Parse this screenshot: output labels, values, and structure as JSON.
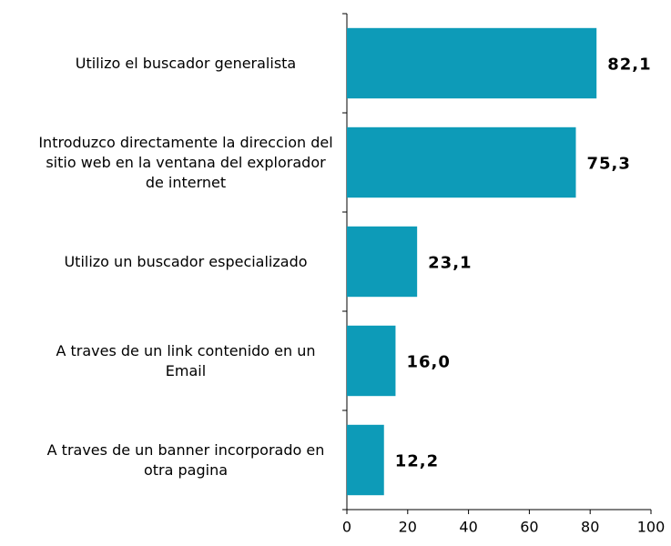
{
  "chart_data": {
    "type": "barh",
    "categories": [
      "Utilizo el buscador generalista",
      "Introduzco directamente la direccion del sitio web en la ventana del explorador de internet",
      "Utilizo un buscador especializado",
      "A traves de un link contenido en un Email",
      "A traves de un banner incorporado en otra pagina"
    ],
    "values": [
      82.1,
      75.3,
      23.1,
      16.0,
      12.2
    ],
    "value_labels": [
      "82,1",
      "75,3",
      "23,1",
      "16,0",
      "12,2"
    ],
    "color": "#0d9bb8",
    "xlim": [
      0,
      100
    ],
    "xticks": [
      0,
      20,
      40,
      60,
      80,
      100
    ]
  }
}
